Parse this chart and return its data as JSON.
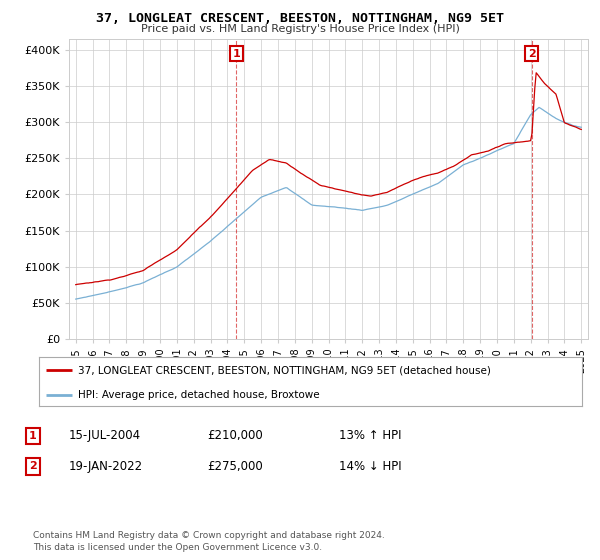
{
  "title": "37, LONGLEAT CRESCENT, BEESTON, NOTTINGHAM, NG9 5ET",
  "subtitle": "Price paid vs. HM Land Registry's House Price Index (HPI)",
  "ylim": [
    0,
    420000
  ],
  "yticks": [
    0,
    50000,
    100000,
    150000,
    200000,
    250000,
    300000,
    350000,
    400000
  ],
  "ytick_labels": [
    "£0",
    "£50K",
    "£100K",
    "£150K",
    "£200K",
    "£250K",
    "£300K",
    "£350K",
    "£400K"
  ],
  "legend_line1": "37, LONGLEAT CRESCENT, BEESTON, NOTTINGHAM, NG9 5ET (detached house)",
  "legend_line2": "HPI: Average price, detached house, Broxtowe",
  "marker1_date": "15-JUL-2004",
  "marker1_price": "£210,000",
  "marker1_hpi": "13% ↑ HPI",
  "marker2_date": "19-JAN-2022",
  "marker2_price": "£275,000",
  "marker2_hpi": "14% ↓ HPI",
  "footer1": "Contains HM Land Registry data © Crown copyright and database right 2024.",
  "footer2": "This data is licensed under the Open Government Licence v3.0.",
  "red_color": "#cc0000",
  "blue_color": "#7ab0d4",
  "grid_color": "#cccccc",
  "bg_color": "#ffffff",
  "sale1_x": 2004.54,
  "sale2_x": 2022.05,
  "xmin": 1995,
  "xmax": 2025
}
